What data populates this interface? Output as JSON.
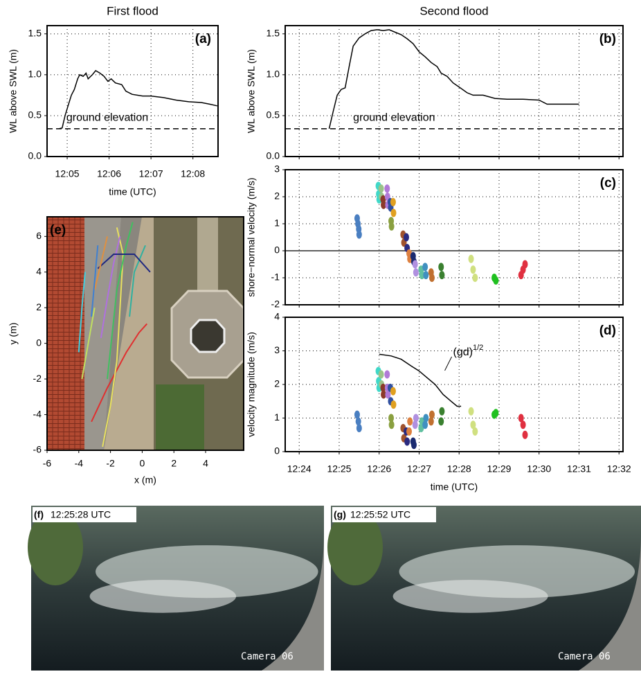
{
  "chart_data": [
    {
      "type": "line",
      "title": "First flood",
      "panel_label": "(a)",
      "xlabel": "time (UTC)",
      "ylabel": "WL above SWL (m)",
      "xlim": [
        4.52,
        8.6
      ],
      "ylim": [
        0,
        1.6
      ],
      "xticks": [
        {
          "value": 5,
          "label": "12:05"
        },
        {
          "value": 6,
          "label": "12:06"
        },
        {
          "value": 7,
          "label": "12:07"
        },
        {
          "value": 8,
          "label": "12:08"
        }
      ],
      "yticks": [
        {
          "value": 0,
          "label": "0.0"
        },
        0.5,
        {
          "value": 1,
          "label": "1.0"
        },
        1.5
      ],
      "show_xtick_labels": true,
      "grid": true,
      "hline": 0.34,
      "annotation": "ground elevation",
      "series": [
        {
          "color": "#000000",
          "x": [
            4.8,
            4.88,
            4.95,
            5.02,
            5.1,
            5.17,
            5.25,
            5.3,
            5.38,
            5.45,
            5.5,
            5.6,
            5.68,
            5.78,
            5.88,
            5.97,
            6.05,
            6.15,
            6.3,
            6.4,
            6.55,
            6.8,
            7.0,
            7.3,
            7.6,
            7.9,
            8.2,
            8.4,
            8.58
          ],
          "values": [
            0.34,
            0.35,
            0.5,
            0.62,
            0.75,
            0.82,
            0.95,
            1.0,
            0.98,
            1.02,
            0.95,
            1.0,
            1.05,
            1.02,
            0.98,
            0.92,
            0.95,
            0.9,
            0.88,
            0.8,
            0.76,
            0.74,
            0.74,
            0.72,
            0.69,
            0.67,
            0.66,
            0.64,
            0.62
          ]
        }
      ]
    },
    {
      "type": "line",
      "title": "Second flood",
      "panel_label": "(b)",
      "ylabel": "WL above SWL (m)",
      "xlim": [
        23.65,
        32.1
      ],
      "ylim": [
        0,
        1.6
      ],
      "xticks": [
        24,
        25,
        26,
        27,
        28,
        29,
        30,
        31,
        32
      ],
      "yticks": [
        {
          "value": 0,
          "label": "0.0"
        },
        0.5,
        {
          "value": 1,
          "label": "1.0"
        },
        1.5
      ],
      "show_xtick_labels": false,
      "grid": true,
      "hline": 0.34,
      "annotation": "ground elevation",
      "series": [
        {
          "color": "#000000",
          "x": [
            24.75,
            24.85,
            24.95,
            25.05,
            25.15,
            25.25,
            25.35,
            25.5,
            25.65,
            25.8,
            25.95,
            26.1,
            26.25,
            26.4,
            26.55,
            26.7,
            26.85,
            27.0,
            27.15,
            27.3,
            27.45,
            27.55,
            27.7,
            27.85,
            28.0,
            28.2,
            28.35,
            28.6,
            28.9,
            29.2,
            29.6,
            30.0,
            30.2,
            30.5,
            31.0
          ],
          "values": [
            0.34,
            0.55,
            0.75,
            0.82,
            0.84,
            1.1,
            1.35,
            1.45,
            1.5,
            1.54,
            1.55,
            1.54,
            1.55,
            1.52,
            1.49,
            1.44,
            1.38,
            1.28,
            1.22,
            1.15,
            1.1,
            1.02,
            0.98,
            0.9,
            0.85,
            0.78,
            0.75,
            0.75,
            0.71,
            0.7,
            0.7,
            0.69,
            0.64,
            0.64,
            0.64
          ]
        }
      ]
    },
    {
      "type": "scatter",
      "panel_label": "(c)",
      "ylabel": "shore−normal velocity (m/s)",
      "xlim": [
        23.65,
        32.1
      ],
      "ylim": [
        -2,
        3
      ],
      "xticks": [
        24,
        25,
        26,
        27,
        28,
        29,
        30,
        31,
        32
      ],
      "yticks": [
        -2,
        -1,
        0,
        1,
        2,
        3
      ],
      "show_xtick_labels": false,
      "grid": true,
      "zero_line": true,
      "series": [
        {
          "color": "#4a7fc1",
          "x": [
            25.45,
            25.47,
            25.49,
            25.5
          ],
          "values": [
            1.2,
            1.0,
            0.8,
            0.6
          ]
        },
        {
          "color": "#40d8c8",
          "x": [
            25.98,
            25.99,
            26.0
          ],
          "values": [
            2.4,
            2.1,
            1.9
          ]
        },
        {
          "color": "#9bc28a",
          "x": [
            26.05,
            26.06
          ],
          "values": [
            2.3,
            2.0
          ]
        },
        {
          "color": "#8b3a2a",
          "x": [
            26.1,
            26.11
          ],
          "values": [
            1.9,
            1.7
          ]
        },
        {
          "color": "#b07ad8",
          "x": [
            26.2,
            26.21,
            26.22
          ],
          "values": [
            2.3,
            2.0,
            1.7
          ]
        },
        {
          "color": "#3050a0",
          "x": [
            26.28,
            26.29
          ],
          "values": [
            1.8,
            1.6
          ]
        },
        {
          "color": "#e0a020",
          "x": [
            26.35,
            26.36
          ],
          "values": [
            1.8,
            1.4
          ]
        },
        {
          "color": "#8aa040",
          "x": [
            26.3,
            26.31
          ],
          "values": [
            1.1,
            0.9
          ]
        },
        {
          "color": "#a0522d",
          "x": [
            26.6,
            26.62
          ],
          "values": [
            0.6,
            0.3
          ]
        },
        {
          "color": "#2a2a80",
          "x": [
            26.68,
            26.7
          ],
          "values": [
            0.5,
            0.1
          ]
        },
        {
          "color": "#dd8040",
          "x": [
            26.75,
            26.77
          ],
          "values": [
            -0.1,
            -0.3
          ]
        },
        {
          "color": "#1a2a70",
          "x": [
            26.85,
            26.87
          ],
          "values": [
            -0.2,
            -0.4
          ]
        },
        {
          "color": "#b090e0",
          "x": [
            26.9,
            26.92
          ],
          "values": [
            -0.5,
            -0.8
          ]
        },
        {
          "color": "#60c0a0",
          "x": [
            27.05,
            27.07
          ],
          "values": [
            -0.7,
            -0.9
          ]
        },
        {
          "color": "#4090c0",
          "x": [
            27.15,
            27.17
          ],
          "values": [
            -0.6,
            -0.9
          ]
        },
        {
          "color": "#c07030",
          "x": [
            27.3,
            27.32
          ],
          "values": [
            -0.8,
            -1.0
          ]
        },
        {
          "color": "#3a8030",
          "x": [
            27.55,
            27.57
          ],
          "values": [
            -0.6,
            -0.9
          ]
        },
        {
          "color": "#d0e080",
          "x": [
            28.3,
            28.35,
            28.4
          ],
          "values": [
            -0.3,
            -0.7,
            -1.0
          ]
        },
        {
          "color": "#20c020",
          "x": [
            28.88,
            28.92
          ],
          "values": [
            -1.0,
            -1.1
          ]
        },
        {
          "color": "#e03040",
          "x": [
            29.55,
            29.6,
            29.65
          ],
          "values": [
            -0.9,
            -0.7,
            -0.5
          ]
        }
      ]
    },
    {
      "type": "scatter",
      "panel_label": "(d)",
      "xlabel": "time (UTC)",
      "ylabel": "velocity magnitude (m/s)",
      "xlim": [
        23.65,
        32.1
      ],
      "ylim": [
        0,
        4
      ],
      "xticks": [
        {
          "value": 24,
          "label": "12:24"
        },
        {
          "value": 25,
          "label": "12:25"
        },
        {
          "value": 26,
          "label": "12:26"
        },
        {
          "value": 27,
          "label": "12:27"
        },
        {
          "value": 28,
          "label": "12:28"
        },
        {
          "value": 29,
          "label": "12:29"
        },
        {
          "value": 30,
          "label": "12:30"
        },
        {
          "value": 31,
          "label": "12:31"
        },
        {
          "value": 32,
          "label": "12:32"
        }
      ],
      "yticks": [
        0,
        1,
        2,
        3,
        4
      ],
      "show_xtick_labels": true,
      "grid": true,
      "annotation": "(gd)",
      "annotation_superscript": "1/2",
      "series": [
        {
          "color": "#4a7fc1",
          "x": [
            25.45,
            25.48,
            25.5
          ],
          "values": [
            1.1,
            0.9,
            0.7
          ]
        },
        {
          "color": "#40d8c8",
          "x": [
            25.98,
            25.99,
            26.0
          ],
          "values": [
            2.4,
            2.1,
            1.9
          ]
        },
        {
          "color": "#9bc28a",
          "x": [
            26.05,
            26.06
          ],
          "values": [
            2.3,
            2.0
          ]
        },
        {
          "color": "#8b3a2a",
          "x": [
            26.1,
            26.11
          ],
          "values": [
            1.9,
            1.7
          ]
        },
        {
          "color": "#b07ad8",
          "x": [
            26.2,
            26.21,
            26.22
          ],
          "values": [
            2.3,
            1.9,
            1.7
          ]
        },
        {
          "color": "#3050a0",
          "x": [
            26.28,
            26.29
          ],
          "values": [
            1.9,
            1.5
          ]
        },
        {
          "color": "#e0a020",
          "x": [
            26.35,
            26.36
          ],
          "values": [
            1.8,
            1.4
          ]
        },
        {
          "color": "#8aa040",
          "x": [
            26.3,
            26.31
          ],
          "values": [
            1.0,
            0.8
          ]
        },
        {
          "color": "#a0522d",
          "x": [
            26.6,
            26.62
          ],
          "values": [
            0.7,
            0.4
          ]
        },
        {
          "color": "#2a2a80",
          "x": [
            26.68,
            26.7
          ],
          "values": [
            0.6,
            0.3
          ]
        },
        {
          "color": "#dd8040",
          "x": [
            26.75,
            26.77
          ],
          "values": [
            0.6,
            0.9
          ]
        },
        {
          "color": "#1a2a70",
          "x": [
            26.85,
            26.87
          ],
          "values": [
            0.3,
            0.2
          ]
        },
        {
          "color": "#b090e0",
          "x": [
            26.9,
            26.92
          ],
          "values": [
            0.8,
            1.0
          ]
        },
        {
          "color": "#60c0a0",
          "x": [
            27.05,
            27.07
          ],
          "values": [
            0.7,
            0.9
          ]
        },
        {
          "color": "#4090c0",
          "x": [
            27.15,
            27.17
          ],
          "values": [
            0.8,
            1.0
          ]
        },
        {
          "color": "#c07030",
          "x": [
            27.3,
            27.32
          ],
          "values": [
            0.9,
            1.1
          ]
        },
        {
          "color": "#3a8030",
          "x": [
            27.55,
            27.57
          ],
          "values": [
            0.9,
            1.2
          ]
        },
        {
          "color": "#d0e080",
          "x": [
            28.3,
            28.35,
            28.4
          ],
          "values": [
            1.2,
            0.8,
            0.6
          ]
        },
        {
          "color": "#20c020",
          "x": [
            28.88,
            28.92
          ],
          "values": [
            1.1,
            1.15
          ]
        },
        {
          "color": "#e03040",
          "x": [
            29.55,
            29.6,
            29.65
          ],
          "values": [
            1.0,
            0.8,
            0.5
          ]
        },
        {
          "type": "line",
          "color": "#000000",
          "x": [
            26.0,
            26.3,
            26.55,
            26.8,
            27.0,
            27.2,
            27.4,
            27.6,
            27.8,
            27.95,
            28.05
          ],
          "values": [
            2.9,
            2.85,
            2.75,
            2.55,
            2.4,
            2.2,
            2.0,
            1.7,
            1.5,
            1.35,
            1.35
          ]
        }
      ]
    },
    {
      "type": "line",
      "panel_label": "(e)",
      "xlabel": "x (m)",
      "ylabel": "y (m)",
      "xlim": [
        -6,
        6.4
      ],
      "ylim": [
        -6,
        7.1
      ],
      "xticks": [
        -6,
        -4,
        -2,
        0,
        2,
        4
      ],
      "yticks": [
        -6,
        -4,
        -2,
        0,
        2,
        4,
        6
      ],
      "show_xtick_labels": true,
      "grid": false,
      "series": [
        {
          "color": "#e03030",
          "x": [
            -3.2,
            -2.2,
            -1.0,
            -0.2,
            0.3
          ],
          "values": [
            -4.4,
            -2.5,
            -0.5,
            0.6,
            1.1
          ]
        },
        {
          "color": "#e8e060",
          "x": [
            -2.5,
            -2.0,
            -1.6,
            -1.4,
            -1.2,
            -1.6
          ],
          "values": [
            -5.8,
            -3.5,
            -1.0,
            2.0,
            5.0,
            6.5
          ]
        },
        {
          "color": "#40d0e0",
          "x": [
            -4.0,
            -3.8,
            -3.6
          ],
          "values": [
            -0.5,
            2.0,
            4.0
          ]
        },
        {
          "color": "#40c060",
          "x": [
            -2.2,
            -1.9,
            -1.6,
            -1.0,
            -0.6
          ],
          "values": [
            -2.0,
            0.5,
            3.0,
            5.5,
            6.8
          ]
        },
        {
          "color": "#b070e0",
          "x": [
            -2.6,
            -2.2,
            -1.8,
            -1.4
          ],
          "values": [
            0.3,
            2.5,
            4.5,
            6.0
          ]
        },
        {
          "color": "#30b0a0",
          "x": [
            -0.8,
            -0.5,
            0.2
          ],
          "values": [
            1.5,
            4.0,
            5.5
          ]
        },
        {
          "color": "#202880",
          "x": [
            -2.8,
            -1.8,
            -0.5,
            0.5
          ],
          "values": [
            4.2,
            5.0,
            5.0,
            4.0
          ]
        },
        {
          "color": "#e09040",
          "x": [
            -3.0,
            -2.6,
            -2.2
          ],
          "values": [
            3.0,
            4.5,
            6.0
          ]
        },
        {
          "color": "#4080d0",
          "x": [
            -3.2,
            -3.0,
            -2.8
          ],
          "values": [
            1.5,
            3.5,
            5.5
          ]
        },
        {
          "color": "#c0e060",
          "x": [
            -3.8,
            -3.4,
            -3.0
          ],
          "values": [
            -2.0,
            0.0,
            2.0
          ]
        }
      ]
    }
  ],
  "photos": [
    {
      "label": "(f)",
      "time": "12:25:28 UTC",
      "camera": "Camera 06"
    },
    {
      "label": "(g)",
      "time": "12:25:52 UTC",
      "camera": "Camera 06"
    }
  ]
}
